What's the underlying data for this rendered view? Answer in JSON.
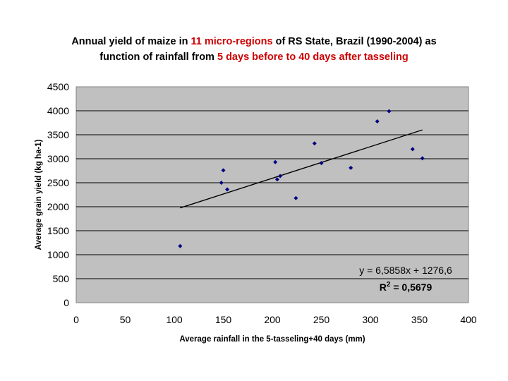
{
  "title": {
    "line1_a": "Annual yield of maize in ",
    "line1_b": "11 micro-regions",
    "line1_c": " of RS State, Brazil (1990-2004) as",
    "line2_a": "function of rainfall from ",
    "line2_b": "5 days before to 40 days after tasseling"
  },
  "colors": {
    "plot_bg": "#c0c0c0",
    "highlight": "#cc0000",
    "marker": "#000080",
    "trendline": "#000000",
    "gridline": "#000000"
  },
  "chart_data": {
    "type": "scatter",
    "xlabel": "Average rainfall in the 5-tasseling+40 days (mm)",
    "ylabel": "Average grain yield (kg ha-1)",
    "xlim": [
      0,
      400
    ],
    "ylim": [
      0,
      4500
    ],
    "x_ticks": [
      "0",
      "50",
      "100",
      "150",
      "200",
      "250",
      "300",
      "350",
      "400"
    ],
    "y_ticks": [
      "0",
      "500",
      "1000",
      "1500",
      "2000",
      "2500",
      "3000",
      "3500",
      "4000",
      "4500"
    ],
    "grid": "horizontal major gridlines",
    "points": [
      {
        "x": 106,
        "y": 1180
      },
      {
        "x": 148,
        "y": 2500
      },
      {
        "x": 150,
        "y": 2760
      },
      {
        "x": 154,
        "y": 2360
      },
      {
        "x": 203,
        "y": 2930
      },
      {
        "x": 205,
        "y": 2570
      },
      {
        "x": 208,
        "y": 2640
      },
      {
        "x": 224,
        "y": 2180
      },
      {
        "x": 243,
        "y": 3320
      },
      {
        "x": 250,
        "y": 2910
      },
      {
        "x": 280,
        "y": 2810
      },
      {
        "x": 307,
        "y": 3780
      },
      {
        "x": 319,
        "y": 3990
      },
      {
        "x": 343,
        "y": 3200
      },
      {
        "x": 353,
        "y": 3010
      }
    ],
    "trendline": {
      "slope": 6.5858,
      "intercept": 1276.6,
      "x_range": [
        106,
        353
      ]
    },
    "equation_label": "y = 6,5858x + 1276,6",
    "r2_label_prefix": "R",
    "r2_label_sup": "2",
    "r2_label_suffix": " = 0,5679"
  }
}
